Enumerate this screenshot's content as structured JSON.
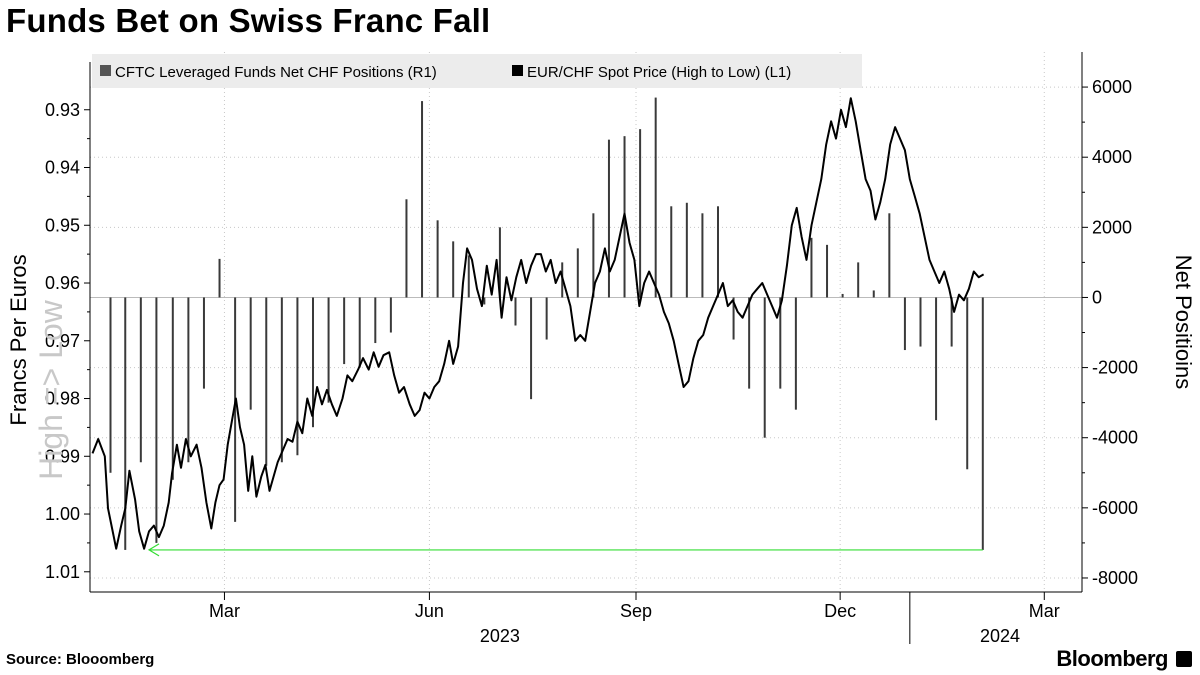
{
  "title": "Funds Bet on Swiss Franc Fall",
  "source": "Source: Blooomberg",
  "brand": "Bloomberg",
  "colors": {
    "line": "#000000",
    "bars": "#3a3a3a",
    "arrow": "#33dd33",
    "grid": "#c8c8c8",
    "legend_bg": "#ececec"
  },
  "chart_data": {
    "type": "line+bar",
    "title": "Funds Bet on Swiss Franc Fall",
    "legend": [
      {
        "name": "CFTC Leveraged Funds Net CHF Positions (R1)",
        "swatch": "#555555"
      },
      {
        "name": "EUR/CHF Spot Price (High to Low) (L1)",
        "swatch": "#000000"
      }
    ],
    "legend_position": "top-left",
    "left_axis": {
      "label": "Francs Per Euros",
      "watermark": "High => Low",
      "inverted": true,
      "range": [
        0.92,
        1.0135
      ],
      "ticks": [
        0.93,
        0.94,
        0.95,
        0.96,
        0.97,
        0.98,
        0.99,
        1.0,
        1.01
      ],
      "tick_labels": [
        "0.93",
        "0.94",
        "0.95",
        "0.96",
        "0.97",
        "0.98",
        "0.99",
        "1.00",
        "1.01"
      ]
    },
    "right_axis": {
      "label": "Net Positioins",
      "range": [
        -8400,
        7000
      ],
      "ticks": [
        6000,
        4000,
        2000,
        0,
        -2000,
        -4000,
        -6000,
        -8000
      ],
      "tick_labels": [
        "6000",
        "4000",
        "2000",
        "0",
        "-2000",
        "-4000",
        "-6000",
        "-8000"
      ]
    },
    "x_axis": {
      "start": 2023.0,
      "end": 2024.21,
      "ticks": [
        {
          "label": "Mar",
          "x": 2023.164
        },
        {
          "label": "Jun",
          "x": 2023.414
        },
        {
          "label": "Sep",
          "x": 2023.666
        },
        {
          "label": "Dec",
          "x": 2023.915
        },
        {
          "label": "Mar",
          "x": 2024.164
        }
      ],
      "year_labels": [
        {
          "label": "2023",
          "x": 2023.5
        },
        {
          "label": "2024",
          "x": 2024.11
        }
      ],
      "year_divider_x": 2024.0
    },
    "series": [
      {
        "name": "EUR/CHF Spot Price (High to Low)",
        "axis": "left",
        "points": [
          [
            2023.003,
            0.9895
          ],
          [
            2023.01,
            0.987
          ],
          [
            2023.018,
            0.99
          ],
          [
            2023.022,
            0.999
          ],
          [
            2023.027,
            1.0025
          ],
          [
            2023.032,
            1.006
          ],
          [
            2023.038,
            1.002
          ],
          [
            2023.043,
            0.999
          ],
          [
            2023.048,
            0.9925
          ],
          [
            2023.055,
            0.9975
          ],
          [
            2023.06,
            1.003
          ],
          [
            2023.066,
            1.006
          ],
          [
            2023.072,
            1.003
          ],
          [
            2023.078,
            1.002
          ],
          [
            2023.084,
            1.004
          ],
          [
            2023.09,
            1.002
          ],
          [
            2023.096,
            0.998
          ],
          [
            2023.1,
            0.993
          ],
          [
            2023.106,
            0.988
          ],
          [
            2023.111,
            0.992
          ],
          [
            2023.117,
            0.987
          ],
          [
            2023.123,
            0.99
          ],
          [
            2023.13,
            0.988
          ],
          [
            2023.136,
            0.992
          ],
          [
            2023.142,
            0.998
          ],
          [
            2023.148,
            1.0025
          ],
          [
            2023.153,
            0.998
          ],
          [
            2023.158,
            0.995
          ],
          [
            2023.163,
            0.994
          ],
          [
            2023.168,
            0.988
          ],
          [
            2023.173,
            0.984
          ],
          [
            2023.178,
            0.98
          ],
          [
            2023.183,
            0.985
          ],
          [
            2023.188,
            0.988
          ],
          [
            2023.193,
            0.996
          ],
          [
            2023.198,
            0.99
          ],
          [
            2023.203,
            0.997
          ],
          [
            2023.209,
            0.9935
          ],
          [
            2023.214,
            0.9915
          ],
          [
            2023.219,
            0.996
          ],
          [
            2023.224,
            0.9935
          ],
          [
            2023.229,
            0.991
          ],
          [
            2023.235,
            0.989
          ],
          [
            2023.241,
            0.987
          ],
          [
            2023.247,
            0.9875
          ],
          [
            2023.253,
            0.984
          ],
          [
            2023.259,
            0.986
          ],
          [
            2023.265,
            0.98
          ],
          [
            2023.271,
            0.983
          ],
          [
            2023.277,
            0.978
          ],
          [
            2023.283,
            0.981
          ],
          [
            2023.289,
            0.9785
          ],
          [
            2023.295,
            0.981
          ],
          [
            2023.301,
            0.983
          ],
          [
            2023.308,
            0.98
          ],
          [
            2023.314,
            0.976
          ],
          [
            2023.32,
            0.977
          ],
          [
            2023.327,
            0.975
          ],
          [
            2023.333,
            0.973
          ],
          [
            2023.34,
            0.975
          ],
          [
            2023.346,
            0.972
          ],
          [
            2023.352,
            0.9745
          ],
          [
            2023.358,
            0.9725
          ],
          [
            2023.365,
            0.972
          ],
          [
            2023.371,
            0.976
          ],
          [
            2023.377,
            0.979
          ],
          [
            2023.383,
            0.978
          ],
          [
            2023.39,
            0.981
          ],
          [
            2023.396,
            0.983
          ],
          [
            2023.402,
            0.982
          ],
          [
            2023.408,
            0.979
          ],
          [
            2023.414,
            0.98
          ],
          [
            2023.42,
            0.978
          ],
          [
            2023.426,
            0.977
          ],
          [
            2023.432,
            0.974
          ],
          [
            2023.438,
            0.97
          ],
          [
            2023.443,
            0.974
          ],
          [
            2023.449,
            0.971
          ],
          [
            2023.455,
            0.96
          ],
          [
            2023.46,
            0.954
          ],
          [
            2023.466,
            0.956
          ],
          [
            2023.472,
            0.961
          ],
          [
            2023.478,
            0.964
          ],
          [
            2023.484,
            0.957
          ],
          [
            2023.49,
            0.962
          ],
          [
            2023.496,
            0.956
          ],
          [
            2023.502,
            0.966
          ],
          [
            2023.508,
            0.959
          ],
          [
            2023.514,
            0.963
          ],
          [
            2023.52,
            0.959
          ],
          [
            2023.526,
            0.956
          ],
          [
            2023.532,
            0.96
          ],
          [
            2023.538,
            0.957
          ],
          [
            2023.544,
            0.955
          ],
          [
            2023.55,
            0.955
          ],
          [
            2023.556,
            0.958
          ],
          [
            2023.562,
            0.956
          ],
          [
            2023.568,
            0.96
          ],
          [
            2023.574,
            0.958
          ],
          [
            2023.58,
            0.961
          ],
          [
            2023.586,
            0.964
          ],
          [
            2023.592,
            0.97
          ],
          [
            2023.598,
            0.969
          ],
          [
            2023.604,
            0.97
          ],
          [
            2023.61,
            0.965
          ],
          [
            2023.616,
            0.96
          ],
          [
            2023.622,
            0.958
          ],
          [
            2023.628,
            0.954
          ],
          [
            2023.634,
            0.958
          ],
          [
            2023.64,
            0.956
          ],
          [
            2023.646,
            0.952
          ],
          [
            2023.652,
            0.948
          ],
          [
            2023.658,
            0.953
          ],
          [
            2023.664,
            0.956
          ],
          [
            2023.67,
            0.964
          ],
          [
            2023.676,
            0.96
          ],
          [
            2023.682,
            0.958
          ],
          [
            2023.688,
            0.96
          ],
          [
            2023.694,
            0.962
          ],
          [
            2023.7,
            0.965
          ],
          [
            2023.706,
            0.967
          ],
          [
            2023.712,
            0.97
          ],
          [
            2023.718,
            0.974
          ],
          [
            2023.724,
            0.978
          ],
          [
            2023.73,
            0.977
          ],
          [
            2023.736,
            0.973
          ],
          [
            2023.742,
            0.97
          ],
          [
            2023.748,
            0.969
          ],
          [
            2023.754,
            0.966
          ],
          [
            2023.76,
            0.964
          ],
          [
            2023.766,
            0.962
          ],
          [
            2023.772,
            0.96
          ],
          [
            2023.778,
            0.964
          ],
          [
            2023.784,
            0.963
          ],
          [
            2023.79,
            0.965
          ],
          [
            2023.796,
            0.966
          ],
          [
            2023.802,
            0.964
          ],
          [
            2023.808,
            0.962
          ],
          [
            2023.814,
            0.961
          ],
          [
            2023.82,
            0.96
          ],
          [
            2023.826,
            0.962
          ],
          [
            2023.832,
            0.964
          ],
          [
            2023.838,
            0.966
          ],
          [
            2023.844,
            0.963
          ],
          [
            2023.85,
            0.957
          ],
          [
            2023.856,
            0.95
          ],
          [
            2023.862,
            0.947
          ],
          [
            2023.868,
            0.952
          ],
          [
            2023.874,
            0.956
          ],
          [
            2023.88,
            0.95
          ],
          [
            2023.886,
            0.946
          ],
          [
            2023.892,
            0.942
          ],
          [
            2023.898,
            0.936
          ],
          [
            2023.904,
            0.932
          ],
          [
            2023.91,
            0.935
          ],
          [
            2023.916,
            0.93
          ],
          [
            2023.922,
            0.933
          ],
          [
            2023.928,
            0.928
          ],
          [
            2023.934,
            0.932
          ],
          [
            2023.94,
            0.937
          ],
          [
            2023.946,
            0.942
          ],
          [
            2023.952,
            0.944
          ],
          [
            2023.958,
            0.949
          ],
          [
            2023.964,
            0.946
          ],
          [
            2023.97,
            0.942
          ],
          [
            2023.976,
            0.936
          ],
          [
            2023.982,
            0.933
          ],
          [
            2023.988,
            0.935
          ],
          [
            2023.994,
            0.937
          ],
          [
            2024.0,
            0.942
          ],
          [
            2024.006,
            0.945
          ],
          [
            2024.012,
            0.948
          ],
          [
            2024.018,
            0.952
          ],
          [
            2024.024,
            0.956
          ],
          [
            2024.03,
            0.958
          ],
          [
            2024.036,
            0.96
          ],
          [
            2024.042,
            0.958
          ],
          [
            2024.048,
            0.961
          ],
          [
            2024.054,
            0.965
          ],
          [
            2024.06,
            0.962
          ],
          [
            2024.066,
            0.963
          ],
          [
            2024.072,
            0.961
          ],
          [
            2024.078,
            0.958
          ],
          [
            2024.084,
            0.959
          ],
          [
            2024.09,
            0.9585
          ]
        ]
      },
      {
        "name": "CFTC Leveraged Funds Net CHF Positions",
        "axis": "right",
        "bars": [
          [
            2023.025,
            -5000
          ],
          [
            2023.043,
            -7200
          ],
          [
            2023.062,
            -4700
          ],
          [
            2023.081,
            -7000
          ],
          [
            2023.101,
            -5200
          ],
          [
            2023.12,
            -4700
          ],
          [
            2023.139,
            -2600
          ],
          [
            2023.158,
            1100
          ],
          [
            2023.177,
            -6400
          ],
          [
            2023.196,
            -3200
          ],
          [
            2023.215,
            -4800
          ],
          [
            2023.234,
            -4700
          ],
          [
            2023.253,
            -4500
          ],
          [
            2023.272,
            -3700
          ],
          [
            2023.291,
            -3000
          ],
          [
            2023.31,
            -1900
          ],
          [
            2023.329,
            -2000
          ],
          [
            2023.348,
            -1300
          ],
          [
            2023.367,
            -1000
          ],
          [
            2023.386,
            2800
          ],
          [
            2023.405,
            5600
          ],
          [
            2023.424,
            2200
          ],
          [
            2023.443,
            1600
          ],
          [
            2023.462,
            1200
          ],
          [
            2023.481,
            -200
          ],
          [
            2023.5,
            2000
          ],
          [
            2023.519,
            -800
          ],
          [
            2023.538,
            -2900
          ],
          [
            2023.557,
            -1200
          ],
          [
            2023.576,
            1000
          ],
          [
            2023.595,
            1400
          ],
          [
            2023.614,
            2400
          ],
          [
            2023.633,
            4500
          ],
          [
            2023.652,
            4600
          ],
          [
            2023.671,
            4800
          ],
          [
            2023.69,
            5700
          ],
          [
            2023.709,
            2600
          ],
          [
            2023.728,
            2700
          ],
          [
            2023.747,
            2400
          ],
          [
            2023.766,
            2600
          ],
          [
            2023.785,
            -1200
          ],
          [
            2023.804,
            -2600
          ],
          [
            2023.823,
            -4000
          ],
          [
            2023.842,
            -2600
          ],
          [
            2023.861,
            -3200
          ],
          [
            2023.88,
            1700
          ],
          [
            2023.899,
            1500
          ],
          [
            2023.918,
            100
          ],
          [
            2023.937,
            1000
          ],
          [
            2023.956,
            200
          ],
          [
            2023.975,
            2400
          ],
          [
            2023.994,
            -1500
          ],
          [
            2024.013,
            -1400
          ],
          [
            2024.032,
            -3500
          ],
          [
            2024.051,
            -1400
          ],
          [
            2024.07,
            -4900
          ],
          [
            2024.089,
            -7200
          ]
        ]
      }
    ],
    "annotation": {
      "type": "arrow",
      "from": [
        2024.089,
        -7200
      ],
      "to": [
        2023.072,
        -7200
      ],
      "color": "#33dd33"
    }
  }
}
